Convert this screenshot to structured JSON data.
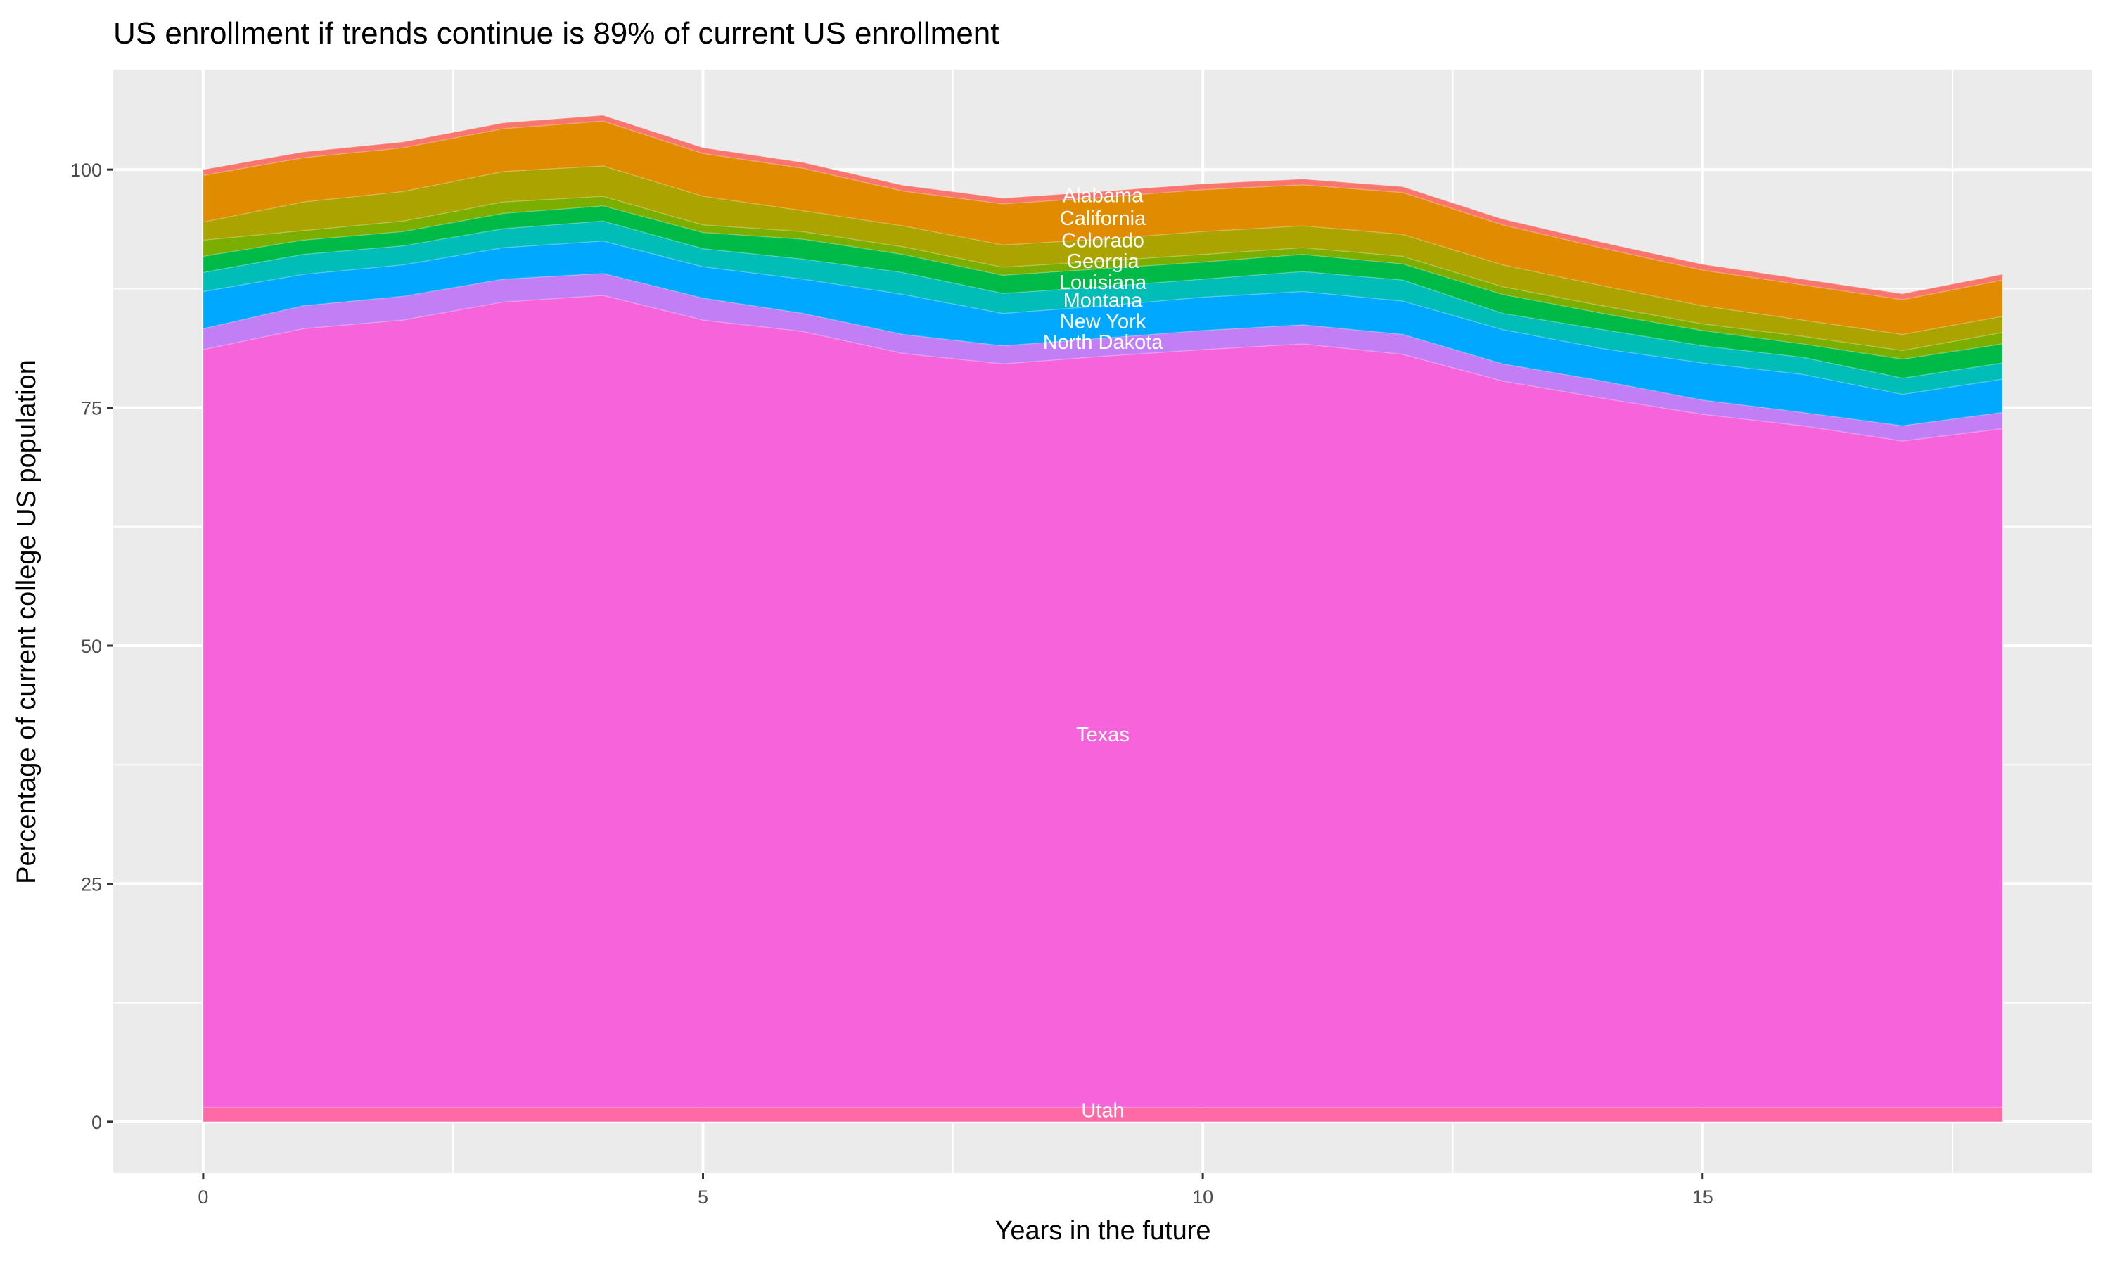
{
  "chart_data": {
    "type": "area",
    "stacked": true,
    "title": "US enrollment if trends continue is 89% of current US enrollment",
    "xlabel": "Years in the future",
    "ylabel": "Percentage of current college US population",
    "xlim": [
      -0.9,
      18.9
    ],
    "ylim": [
      -5.4,
      110.5
    ],
    "x_ticks": [
      "0",
      "5",
      "10",
      "15"
    ],
    "x_tick_values": [
      0,
      5,
      10,
      15
    ],
    "y_ticks": [
      "0",
      "25",
      "50",
      "75",
      "100"
    ],
    "y_tick_values": [
      0,
      25,
      50,
      75,
      100
    ],
    "grid": true,
    "legend": "none",
    "x": [
      0,
      1,
      2,
      3,
      4,
      5,
      6,
      7,
      8,
      9,
      10,
      11,
      12,
      13,
      14,
      15,
      16,
      17,
      18
    ],
    "series": [
      {
        "color": "#FF6AA6",
        "values": [
          1.5,
          1.5,
          1.5,
          1.5,
          1.5,
          1.5,
          1.5,
          1.5,
          1.5,
          1.5,
          1.5,
          1.5,
          1.5,
          1.5,
          1.5,
          1.5,
          1.5,
          1.5,
          1.5
        ]
      },
      {
        "color": "#F763DB",
        "values": [
          79.6,
          81.8,
          82.7,
          84.6,
          85.3,
          82.7,
          81.5,
          79.2,
          78.1,
          78.9,
          79.6,
          80.2,
          79.1,
          76.3,
          74.5,
          72.8,
          71.6,
          70.0,
          71.3
        ]
      },
      {
        "color": "#C27EF5",
        "values": [
          2.2,
          2.4,
          2.5,
          2.4,
          2.3,
          2.3,
          1.9,
          2.0,
          1.9,
          1.9,
          2.0,
          2.0,
          2.1,
          1.8,
          1.8,
          1.5,
          1.4,
          1.6,
          1.7
        ]
      },
      {
        "color": "#00A9FF",
        "values": [
          3.9,
          3.3,
          3.3,
          3.3,
          3.4,
          3.3,
          3.6,
          4.2,
          3.4,
          3.4,
          3.5,
          3.5,
          3.5,
          3.6,
          3.4,
          3.9,
          4.0,
          3.3,
          3.5
        ]
      },
      {
        "color": "#00BDB8",
        "values": [
          2.0,
          2.1,
          2.0,
          2.0,
          2.1,
          1.9,
          2.1,
          2.3,
          2.1,
          2.0,
          1.9,
          2.1,
          2.2,
          1.7,
          2.0,
          1.8,
          1.8,
          1.7,
          1.7
        ]
      },
      {
        "color": "#00BA48",
        "values": [
          1.7,
          1.5,
          1.5,
          1.6,
          1.6,
          1.7,
          2.1,
          1.9,
          1.9,
          1.9,
          1.8,
          1.8,
          1.7,
          2.0,
          1.7,
          1.6,
          1.4,
          2.0,
          2.0
        ]
      },
      {
        "color": "#7CAE00",
        "values": [
          1.7,
          1.0,
          1.1,
          1.2,
          1.0,
          0.8,
          0.8,
          0.8,
          0.85,
          0.8,
          0.8,
          0.7,
          0.8,
          0.8,
          0.8,
          0.7,
          0.8,
          0.9,
          1.2
        ]
      },
      {
        "color": "#ABA300",
        "values": [
          1.9,
          3.0,
          3.1,
          3.2,
          3.2,
          3.0,
          2.2,
          2.2,
          2.35,
          2.3,
          2.4,
          2.3,
          2.3,
          2.3,
          2.1,
          1.9,
          1.7,
          1.7,
          1.7
        ]
      },
      {
        "color": "#E08B00",
        "values": [
          4.9,
          4.65,
          4.6,
          4.5,
          4.7,
          4.5,
          4.45,
          3.65,
          4.3,
          4.4,
          4.4,
          4.3,
          4.4,
          4.2,
          3.95,
          3.75,
          3.7,
          3.65,
          3.8
        ]
      },
      {
        "color": "#F8766D",
        "values": [
          0.6,
          0.6,
          0.6,
          0.6,
          0.6,
          0.6,
          0.6,
          0.6,
          0.6,
          0.6,
          0.6,
          0.6,
          0.6,
          0.6,
          0.6,
          0.6,
          0.6,
          0.6,
          0.6
        ]
      }
    ],
    "annotations": [
      {
        "text": "Alabama",
        "x": 9,
        "y": 97.3
      },
      {
        "text": "California",
        "x": 9,
        "y": 94.9
      },
      {
        "text": "Colorado",
        "x": 9,
        "y": 92.6
      },
      {
        "text": "Georgia",
        "x": 9,
        "y": 90.4
      },
      {
        "text": "Louisiana",
        "x": 9,
        "y": 88.2
      },
      {
        "text": "Montana",
        "x": 9,
        "y": 86.3
      },
      {
        "text": "New York",
        "x": 9,
        "y": 84.1
      },
      {
        "text": "North Dakota",
        "x": 9,
        "y": 81.9
      },
      {
        "text": "Texas",
        "x": 9,
        "y": 40.7
      },
      {
        "text": "Utah",
        "x": 9,
        "y": 1.2
      }
    ],
    "panel_background": "#EBEBEB",
    "grid_color": "#FFFFFF"
  }
}
